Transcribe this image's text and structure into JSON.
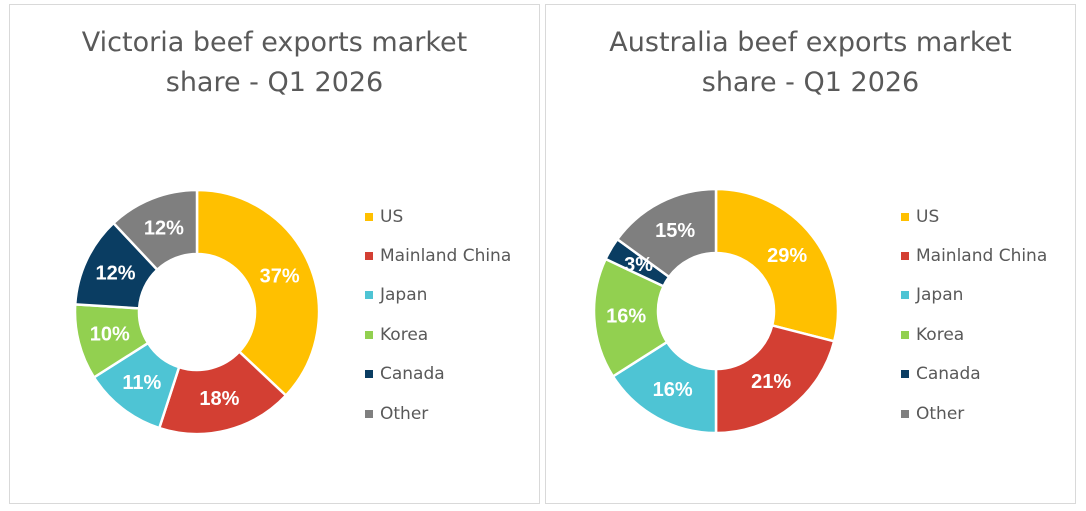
{
  "chart_data": [
    {
      "type": "pie",
      "title": "Victoria beef exports market share - Q1 2026",
      "title_lines": [
        "Victoria beef exports market",
        "share - Q1 2026"
      ],
      "categories": [
        "US",
        "Mainland China",
        "Japan",
        "Korea",
        "Canada",
        "Other"
      ],
      "values": [
        37,
        18,
        11,
        10,
        12,
        12
      ],
      "data_labels": [
        "37%",
        "18%",
        "11%",
        "10%",
        "12%",
        "12%"
      ],
      "colors": [
        "#FFC000",
        "#D33F33",
        "#4EC4D4",
        "#92D050",
        "#0A3D62",
        "#7F7F7F"
      ],
      "style": "donut",
      "legend_position": "right"
    },
    {
      "type": "pie",
      "title": "Australia beef exports market share - Q1 2026",
      "title_lines": [
        "Australia beef exports market",
        "share - Q1 2026"
      ],
      "categories": [
        "US",
        "Mainland China",
        "Japan",
        "Korea",
        "Canada",
        "Other"
      ],
      "values": [
        29,
        21,
        16,
        16,
        3,
        15
      ],
      "data_labels": [
        "29%",
        "21%",
        "16%",
        "16%",
        "3%",
        "15%"
      ],
      "colors": [
        "#FFC000",
        "#D33F33",
        "#4EC4D4",
        "#92D050",
        "#0A3D62",
        "#7F7F7F"
      ],
      "style": "donut",
      "legend_position": "right"
    }
  ]
}
